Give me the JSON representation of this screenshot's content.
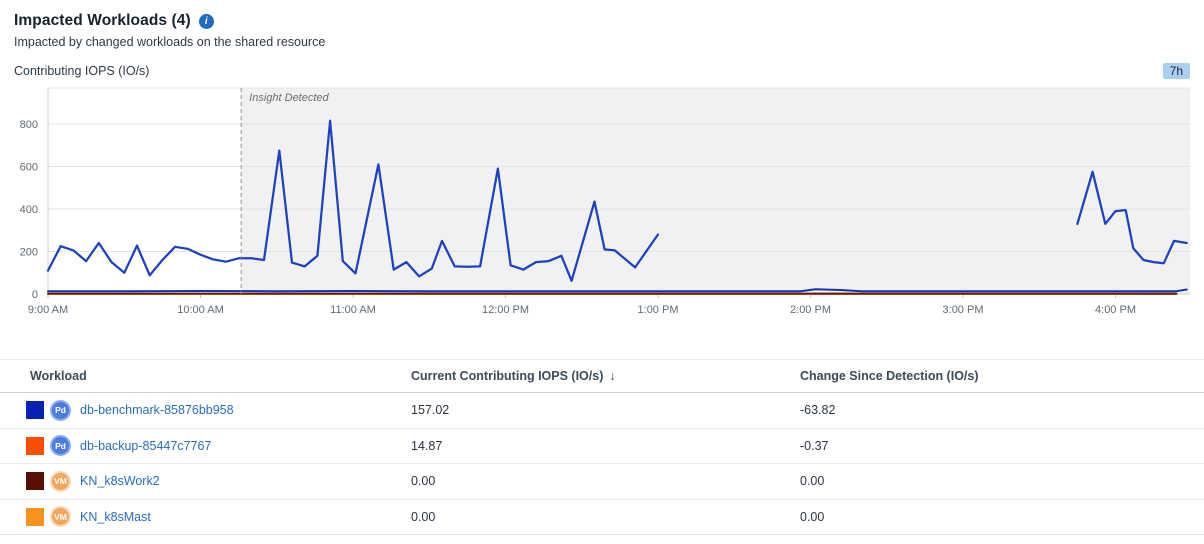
{
  "header": {
    "title": "Impacted Workloads (4)",
    "subtitle": "Impacted by changed workloads on the shared resource",
    "metric_label": "Contributing IOPS (IO/s)",
    "time_range": "7h"
  },
  "icons": {
    "info": "i",
    "sort_desc": "↓"
  },
  "chart_data": {
    "type": "line",
    "title": "Contributing IOPS (IO/s)",
    "time_range": "7h",
    "x_ticks": [
      "9:00 AM",
      "10:00 AM",
      "11:00 AM",
      "12:00 PM",
      "1:00 PM",
      "2:00 PM",
      "3:00 PM",
      "4:00 PM"
    ],
    "y_ticks": [
      0,
      200,
      400,
      600,
      800
    ],
    "ylim": [
      0,
      970
    ],
    "grid": true,
    "legend": "none",
    "annotation": {
      "label": "Insight Detected",
      "x_min": 76,
      "shaded_after": true
    },
    "x_unit": "minutes since 9:00 AM",
    "series": [
      {
        "name": "db-benchmark-85876bb958",
        "color": "#1c41c2",
        "width": 2.25,
        "segments": [
          [
            [
              0,
              110
            ],
            [
              5,
              225
            ],
            [
              10,
              205
            ],
            [
              15,
              155
            ],
            [
              20,
              240
            ],
            [
              25,
              150
            ],
            [
              30,
              100
            ],
            [
              35,
              228
            ],
            [
              40,
              88
            ],
            [
              45,
              160
            ],
            [
              50,
              222
            ],
            [
              55,
              212
            ],
            [
              60,
              185
            ],
            [
              65,
              163
            ],
            [
              70,
              152
            ],
            [
              75,
              168
            ],
            [
              80,
              168
            ],
            [
              85,
              160
            ],
            [
              91,
              675
            ],
            [
              96,
              148
            ],
            [
              101,
              130
            ],
            [
              106,
              180
            ],
            [
              111,
              815
            ],
            [
              116,
              155
            ],
            [
              121,
              97
            ],
            [
              130,
              610
            ],
            [
              136,
              115
            ],
            [
              141,
              150
            ],
            [
              146,
              83
            ],
            [
              151,
              120
            ],
            [
              155,
              250
            ],
            [
              160,
              130
            ],
            [
              165,
              128
            ],
            [
              170,
              130
            ],
            [
              177,
              590
            ],
            [
              182,
              135
            ],
            [
              187,
              115
            ],
            [
              192,
              150
            ],
            [
              197,
              155
            ],
            [
              202,
              180
            ],
            [
              206,
              62
            ],
            [
              215,
              435
            ],
            [
              219,
              210
            ],
            [
              223,
              205
            ],
            [
              231,
              125
            ],
            [
              240,
              280
            ]
          ],
          [
            [
              405,
              330
            ],
            [
              411,
              575
            ],
            [
              416,
              330
            ],
            [
              420,
              390
            ],
            [
              424,
              395
            ],
            [
              427,
              215
            ],
            [
              431,
              160
            ],
            [
              435,
              150
            ],
            [
              439,
              145
            ],
            [
              443,
              250
            ],
            [
              448,
              240
            ]
          ]
        ]
      },
      {
        "name": "db-backup-85447c7767",
        "color": "#1334b0",
        "width": 2,
        "segments": [
          [
            [
              0,
              13
            ],
            [
              30,
              13
            ],
            [
              60,
              14
            ],
            [
              90,
              13
            ],
            [
              120,
              14
            ],
            [
              150,
              13
            ],
            [
              180,
              13
            ],
            [
              210,
              13
            ],
            [
              240,
              13
            ],
            [
              270,
              13
            ],
            [
              296,
              13
            ],
            [
              302,
              22
            ],
            [
              312,
              19
            ],
            [
              320,
              13
            ],
            [
              350,
              13
            ],
            [
              380,
              13
            ],
            [
              410,
              13
            ],
            [
              435,
              13
            ],
            [
              444,
              13
            ],
            [
              448,
              21
            ]
          ]
        ]
      },
      {
        "name": "KN_k8sWork2",
        "color": "#6b1505",
        "width": 2,
        "segments": [
          [
            [
              0,
              2
            ],
            [
              444,
              2
            ]
          ]
        ]
      },
      {
        "name": "KN_k8sMast",
        "color": "#f5921e",
        "width": 2,
        "segments": [
          [
            [
              0,
              0
            ],
            [
              444,
              0
            ]
          ]
        ]
      }
    ]
  },
  "table": {
    "columns": [
      "Workload",
      "Current Contributing IOPS (IO/s)",
      "Change Since Detection (IO/s)"
    ],
    "sort": {
      "column": "Current Contributing IOPS (IO/s)",
      "direction": "desc"
    },
    "rows": [
      {
        "name": "db-benchmark-85876bb958",
        "swatch": "#0522b4",
        "icon": "pod",
        "icon_label": "Pd",
        "current": "157.02",
        "change": "-63.82"
      },
      {
        "name": "db-backup-85447c7767",
        "swatch": "#fc4e00",
        "icon": "pod",
        "icon_label": "Pd",
        "current": "14.87",
        "change": "-0.37"
      },
      {
        "name": "KN_k8sWork2",
        "swatch": "#5a0f04",
        "icon": "vm",
        "icon_label": "VM",
        "current": "0.00",
        "change": "0.00"
      },
      {
        "name": "KN_k8sMast",
        "swatch": "#f6921d",
        "icon": "vm",
        "icon_label": "VM",
        "current": "0.00",
        "change": "0.00"
      }
    ]
  }
}
